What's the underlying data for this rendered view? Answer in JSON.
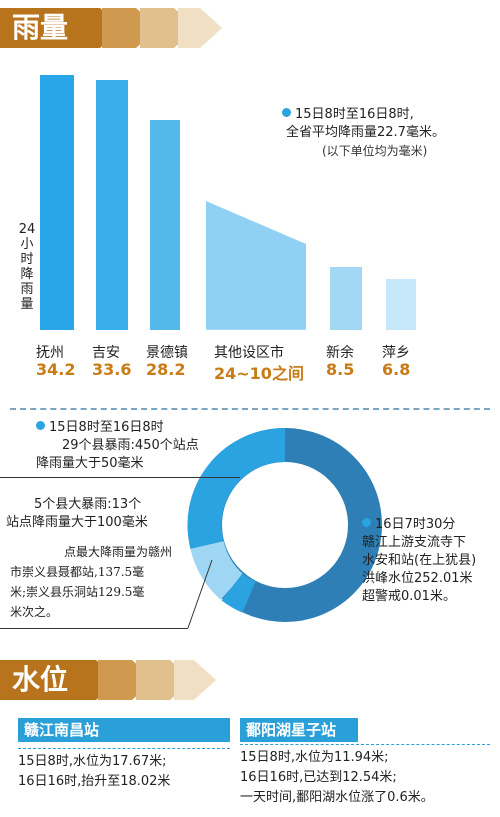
{
  "rain": {
    "title": "雨量",
    "summary_line1": "15日8时至16日8时,",
    "summary_line2": "全省平均降雨量22.7毫米。",
    "unit_note": "(以下单位均为毫米)"
  },
  "chart_data": {
    "type": "bar",
    "ylabel": "24小时降雨量",
    "categories": [
      "抚州",
      "吉安",
      "景德镇",
      "其他设区市",
      "新余",
      "萍乡"
    ],
    "value_labels": [
      "34.2",
      "33.6",
      "28.2",
      "24~10之间",
      "8.5",
      "6.8"
    ],
    "values": [
      34.2,
      33.6,
      28.2,
      24,
      8.5,
      6.8
    ],
    "range_category": {
      "name": "其他设区市",
      "from": 24,
      "to": 10
    }
  },
  "storm": {
    "line1": "15日8时至16日8时",
    "line2": "29个县暴雨:450个站点",
    "line3": "降雨量大于50毫米",
    "heavy1": "5个县大暴雨:13个",
    "heavy2": "站点降雨量大于100毫米",
    "max1": "点最大降雨量为赣州",
    "max2": "市崇义县聂都站,137.5毫",
    "max3": "米;崇义县乐洞站129.5毫",
    "max4": "米次之。",
    "right1": "16日7时30分",
    "right2": "赣江上游支流寺下",
    "right3": "水安和站(在上犹县)",
    "right4": "洪峰水位252.01米",
    "right5": "超警戒0.01米。"
  },
  "water": {
    "title": "水位",
    "st1": {
      "name": "赣江南昌站",
      "l1": "15日8时,水位为17.67米;",
      "l2": "16日16时,抬升至18.02米"
    },
    "st2": {
      "name": "鄱阳湖星子站",
      "l1": "15日8时,水位为11.94米;",
      "l2": "16日16时,已达到12.54米;",
      "l3": "一天时间,鄱阳湖水位涨了0.6米。"
    }
  },
  "colors": {
    "brown": "#b8741c",
    "bar1": "#29a6e8",
    "bar2": "#3aaeea",
    "bar3": "#53b8ec",
    "bar4": "#8fd0f3",
    "bar5": "#a3d8f5",
    "bar6": "#c6e8fa",
    "donut_dark": "#2e7fb6",
    "donut_mid": "#2aa3e0",
    "donut_light": "#9fd6f3"
  }
}
